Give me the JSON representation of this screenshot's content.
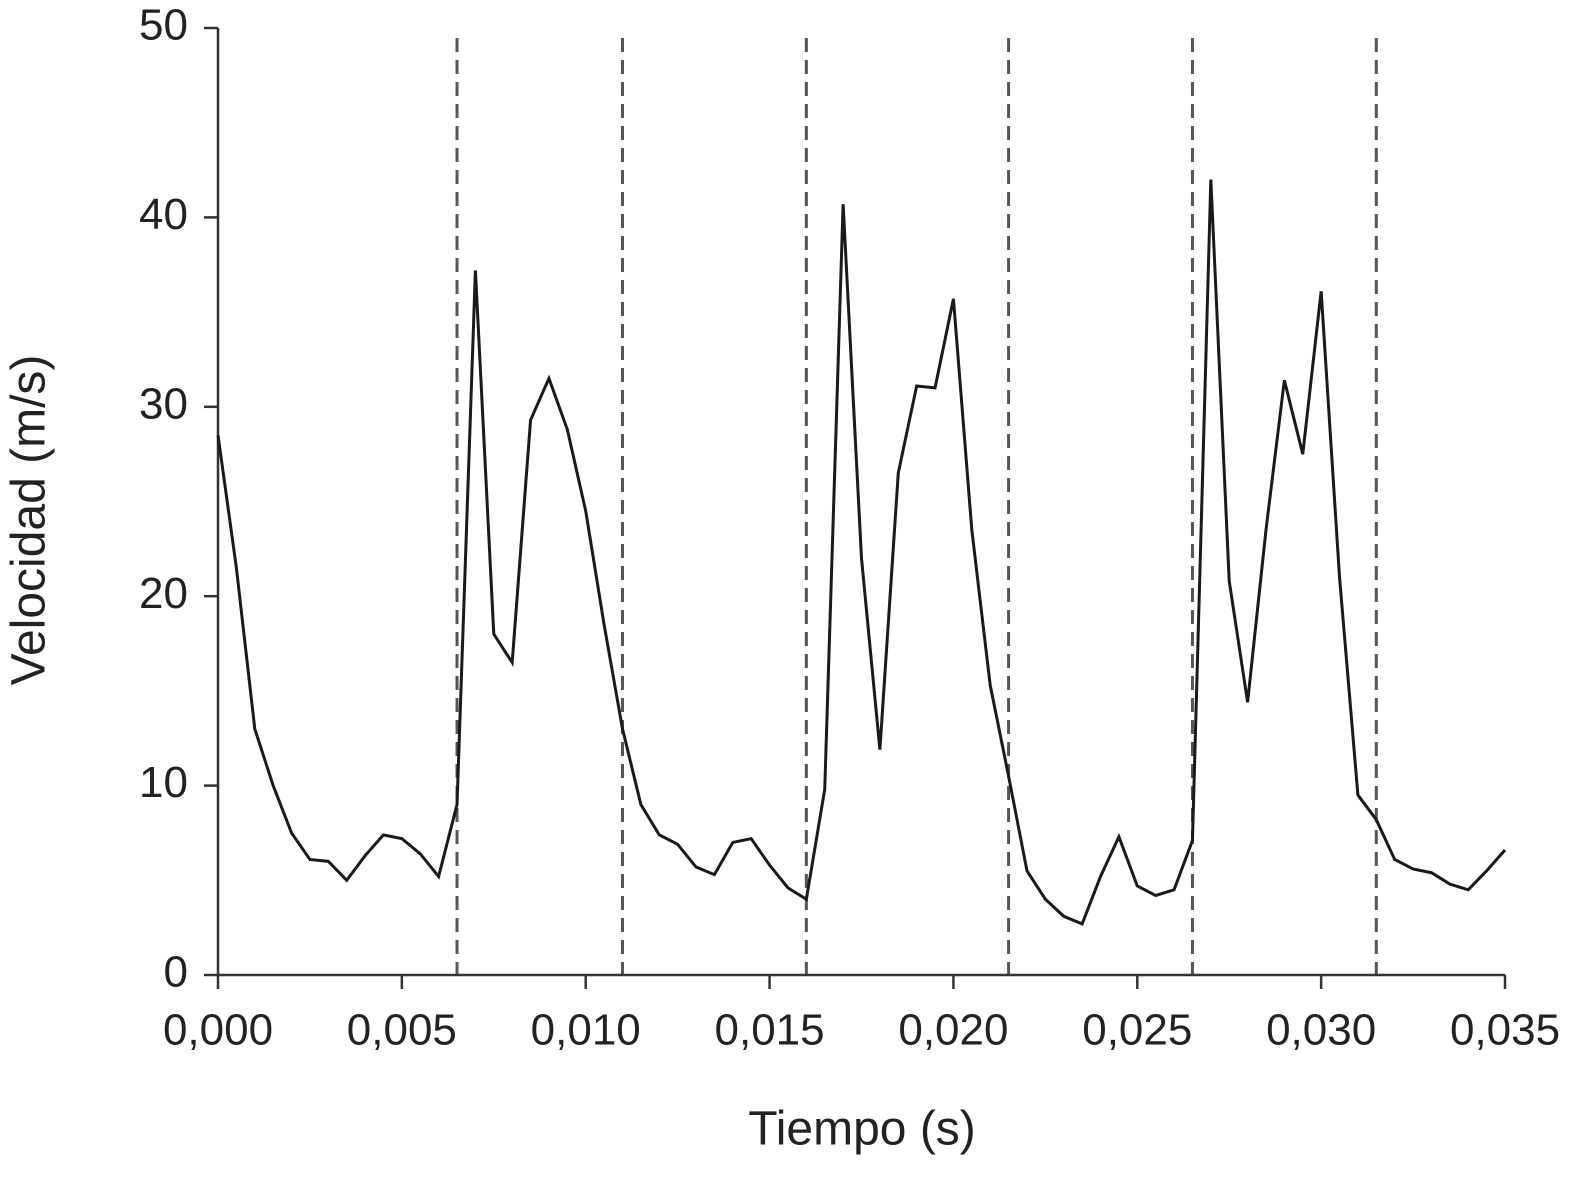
{
  "chart_data": {
    "type": "line",
    "x_label": "Tiempo (s)",
    "y_label": "Velocidad (m/s)",
    "x": [
      0,
      0.0005,
      0.001,
      0.0015,
      0.002,
      0.0025,
      0.003,
      0.0035,
      0.004,
      0.0045,
      0.005,
      0.0055,
      0.006,
      0.0065,
      0.007,
      0.0075,
      0.008,
      0.0085,
      0.009,
      0.0095,
      0.01,
      0.0105,
      0.011,
      0.0115,
      0.012,
      0.0125,
      0.013,
      0.0135,
      0.014,
      0.0145,
      0.015,
      0.0155,
      0.016,
      0.0165,
      0.017,
      0.0175,
      0.018,
      0.0185,
      0.019,
      0.0195,
      0.02,
      0.0205,
      0.021,
      0.0215,
      0.022,
      0.0225,
      0.023,
      0.0235,
      0.024,
      0.0245,
      0.025,
      0.0255,
      0.026,
      0.0265,
      0.027,
      0.0275,
      0.028,
      0.0285,
      0.029,
      0.0295,
      0.03,
      0.0305,
      0.031,
      0.0315,
      0.032,
      0.0325,
      0.033,
      0.0335,
      0.034,
      0.0345,
      0.035
    ],
    "series": [
      {
        "color": "#1a1a1a",
        "values": [
          28.5,
          21.5,
          13,
          10,
          7.5,
          6.1,
          6.0,
          5.0,
          6.3,
          7.4,
          7.2,
          6.4,
          5.2,
          9.0,
          37.2,
          18.0,
          16.5,
          29.3,
          31.5,
          28.8,
          24.5,
          18.5,
          13.0,
          9.0,
          7.4,
          6.9,
          5.7,
          5.3,
          7.0,
          7.2,
          5.8,
          4.6,
          4.0,
          9.8,
          40.7,
          22.0,
          11.9,
          26.5,
          31.1,
          31.0,
          35.7,
          23.5,
          15.3,
          10.5,
          5.5,
          4.0,
          3.1,
          2.7,
          5.2,
          7.3,
          4.7,
          4.2,
          4.5,
          7.1,
          42.0,
          20.8,
          14.4,
          23.5,
          31.4,
          27.5,
          36.1,
          21.0,
          9.5,
          8.2,
          6.1,
          5.6,
          5.4,
          4.8,
          4.5,
          5.5,
          6.6
        ]
      }
    ],
    "xlim": [
      0,
      0.035
    ],
    "ylim": [
      0,
      50
    ],
    "xticks": [
      {
        "value": 0,
        "label": "0,000"
      },
      {
        "value": 0.005,
        "label": "0,005"
      },
      {
        "value": 0.01,
        "label": "0,010"
      },
      {
        "value": 0.015,
        "label": "0,015"
      },
      {
        "value": 0.02,
        "label": "0,020"
      },
      {
        "value": 0.025,
        "label": "0,025"
      },
      {
        "value": 0.03,
        "label": "0,030"
      },
      {
        "value": 0.035,
        "label": "0,035"
      }
    ],
    "yticks": [
      0,
      10,
      20,
      30,
      40,
      50
    ],
    "vlines": [
      0.0065,
      0.011,
      0.016,
      0.0215,
      0.0265,
      0.0315
    ],
    "vline_color": "#555555",
    "grid": false
  }
}
